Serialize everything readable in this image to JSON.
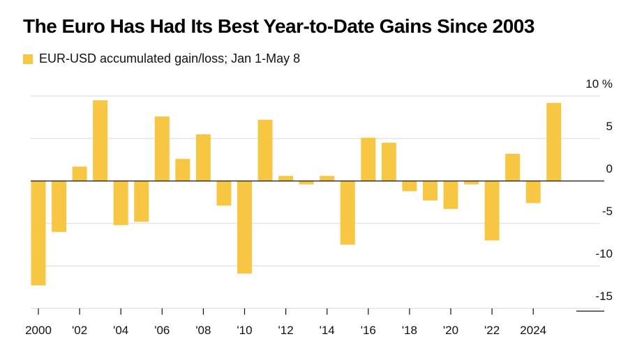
{
  "chart_data": {
    "type": "bar",
    "title": "The Euro Has Had Its Best Year-to-Date Gains Since 2003",
    "legend": "EUR-USD accumulated gain/loss; Jan 1-May 8",
    "series": [
      {
        "name": "EUR-USD accumulated gain/loss; Jan 1-May 8",
        "color": "#f7c744",
        "x": [
          2000,
          2001,
          2002,
          2003,
          2004,
          2005,
          2006,
          2007,
          2008,
          2009,
          2010,
          2011,
          2012,
          2013,
          2014,
          2015,
          2016,
          2017,
          2018,
          2019,
          2020,
          2021,
          2022,
          2023,
          2024,
          2025
        ],
        "values": [
          -12.3,
          -6.0,
          1.7,
          9.5,
          -5.2,
          -4.8,
          7.6,
          2.6,
          5.5,
          -2.9,
          -10.9,
          7.2,
          0.6,
          -0.4,
          0.6,
          -7.5,
          5.1,
          4.5,
          -1.2,
          -2.3,
          -3.3,
          -0.4,
          -7.0,
          3.2,
          -2.6,
          9.2
        ]
      }
    ],
    "y_ticks": [
      {
        "value": 10,
        "label": "10 %"
      },
      {
        "value": 5,
        "label": "5"
      },
      {
        "value": 0,
        "label": "0"
      },
      {
        "value": -5,
        "label": "-5"
      },
      {
        "value": -10,
        "label": "-10"
      },
      {
        "value": -15,
        "label": "-15"
      }
    ],
    "x_ticks": [
      {
        "value": 2000,
        "label": "2000"
      },
      {
        "value": 2002,
        "label": "'02"
      },
      {
        "value": 2004,
        "label": "'04"
      },
      {
        "value": 2006,
        "label": "'06"
      },
      {
        "value": 2008,
        "label": "'08"
      },
      {
        "value": 2010,
        "label": "'10"
      },
      {
        "value": 2012,
        "label": "'12"
      },
      {
        "value": 2014,
        "label": "'14"
      },
      {
        "value": 2016,
        "label": "'16"
      },
      {
        "value": 2018,
        "label": "'18"
      },
      {
        "value": 2020,
        "label": "'20"
      },
      {
        "value": 2022,
        "label": "'22"
      },
      {
        "value": 2024,
        "label": "2024"
      }
    ],
    "ylim": [
      -15,
      10
    ],
    "xlim": [
      2000,
      2025
    ],
    "grid": true,
    "legend_position": "top-left",
    "xlabel": "",
    "ylabel": ""
  }
}
